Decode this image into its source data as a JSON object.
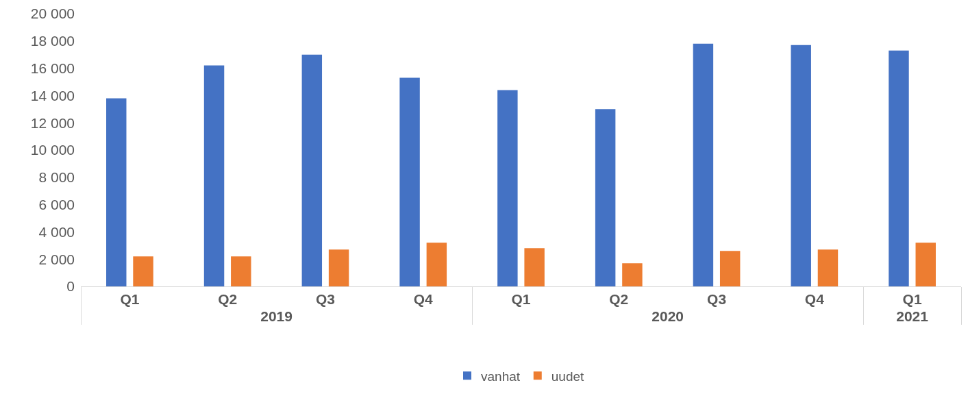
{
  "chart_data": {
    "type": "bar",
    "categories": [
      "Q1",
      "Q2",
      "Q3",
      "Q4",
      "Q1",
      "Q2",
      "Q3",
      "Q4",
      "Q1"
    ],
    "annotations": [
      "2019",
      "2020",
      "2021"
    ],
    "series": [
      {
        "name": "vanhat",
        "color": "#4472c4",
        "values": [
          13800,
          16200,
          17000,
          15300,
          14400,
          13000,
          17800,
          17700,
          17300
        ]
      },
      {
        "name": "uudet",
        "color": "#ed7d31",
        "values": [
          2200,
          2200,
          2700,
          3200,
          2800,
          1700,
          2600,
          2700,
          3200
        ]
      }
    ],
    "ylim": [
      0,
      20000
    ],
    "yticks": [
      0,
      {
        "value": 2000,
        "label": "2 000"
      },
      {
        "value": 4000,
        "label": "4 000"
      },
      {
        "value": 6000,
        "label": "6 000"
      },
      {
        "value": 8000,
        "label": "8 000"
      },
      {
        "value": 10000,
        "label": "10 000"
      },
      {
        "value": 12000,
        "label": "12 000"
      },
      {
        "value": 14000,
        "label": "14 000"
      },
      {
        "value": 16000,
        "label": "16 000"
      },
      {
        "value": 18000,
        "label": "18 000"
      },
      {
        "value": 20000,
        "label": "20 000"
      }
    ],
    "grid": false,
    "legend": "bottom"
  }
}
